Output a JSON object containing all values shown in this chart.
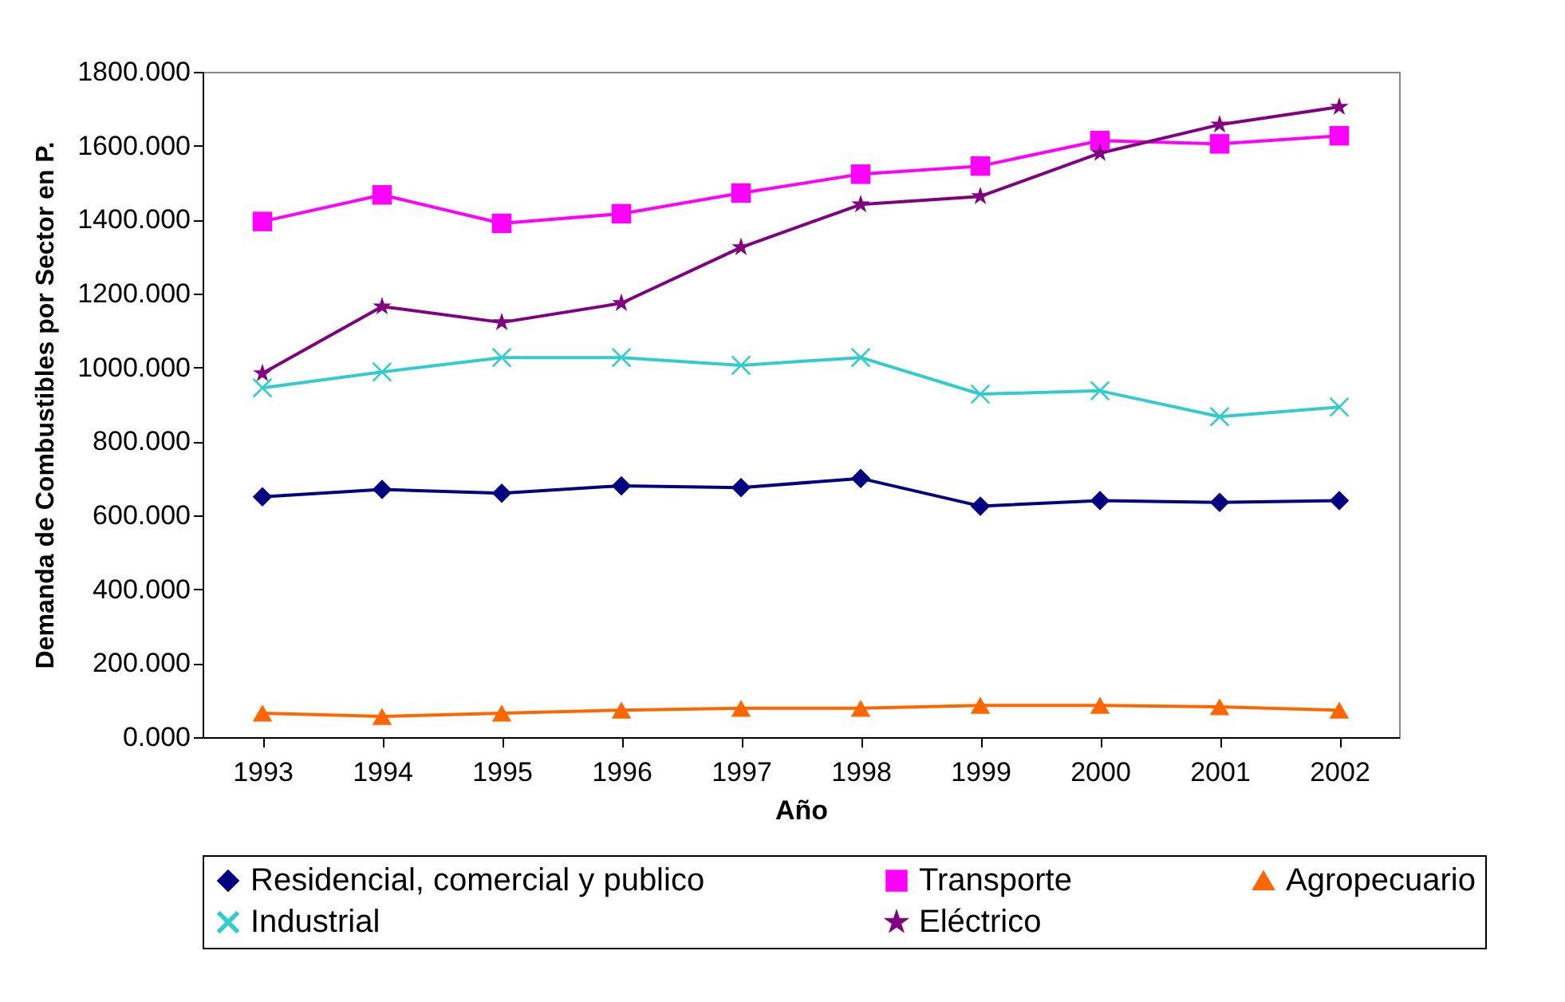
{
  "chart_data": {
    "type": "line",
    "xlabel": "Año",
    "ylabel": "Demanda de Combustibles por Sector en P.",
    "categories": [
      "1993",
      "1994",
      "1995",
      "1996",
      "1997",
      "1998",
      "1999",
      "2000",
      "2001",
      "2002"
    ],
    "series": [
      {
        "name": "Residencial, comercial y publico",
        "color": "#000080",
        "marker": "diamond",
        "values": [
          650,
          670,
          660,
          680,
          675,
          700,
          625,
          640,
          635,
          640
        ]
      },
      {
        "name": "Transporte",
        "color": "#ff00ff",
        "marker": "square",
        "values": [
          1395,
          1467,
          1390,
          1416,
          1472,
          1523,
          1545,
          1614,
          1605,
          1627
        ]
      },
      {
        "name": "Agropecuario",
        "color": "#ff6600",
        "marker": "triangle",
        "values": [
          65,
          56,
          65,
          73,
          78,
          78,
          86,
          86,
          82,
          73
        ]
      },
      {
        "name": "Industrial",
        "color": "#33cccc",
        "marker": "cross",
        "values": [
          945,
          988,
          1027,
          1027,
          1006,
          1027,
          928,
          937,
          867,
          893
        ]
      },
      {
        "name": "Eléctrico",
        "color": "#800080",
        "marker": "star",
        "values": [
          984,
          1165,
          1122,
          1174,
          1325,
          1441,
          1463,
          1580,
          1657,
          1705
        ]
      }
    ],
    "ylim": [
      0,
      1800
    ],
    "yticks": [
      {
        "value": 0,
        "label": "0.000"
      },
      {
        "value": 200,
        "label": "200.000"
      },
      {
        "value": 400,
        "label": "400.000"
      },
      {
        "value": 600,
        "label": "600.000"
      },
      {
        "value": 800,
        "label": "800.000"
      },
      {
        "value": 1000,
        "label": "1000.000"
      },
      {
        "value": 1200,
        "label": "1200.000"
      },
      {
        "value": 1400,
        "label": "1400.000"
      },
      {
        "value": 1600,
        "label": "1600.000"
      },
      {
        "value": 1800,
        "label": "1800.000"
      }
    ],
    "grid": false,
    "legend": "bottom",
    "line_style": "solid"
  }
}
